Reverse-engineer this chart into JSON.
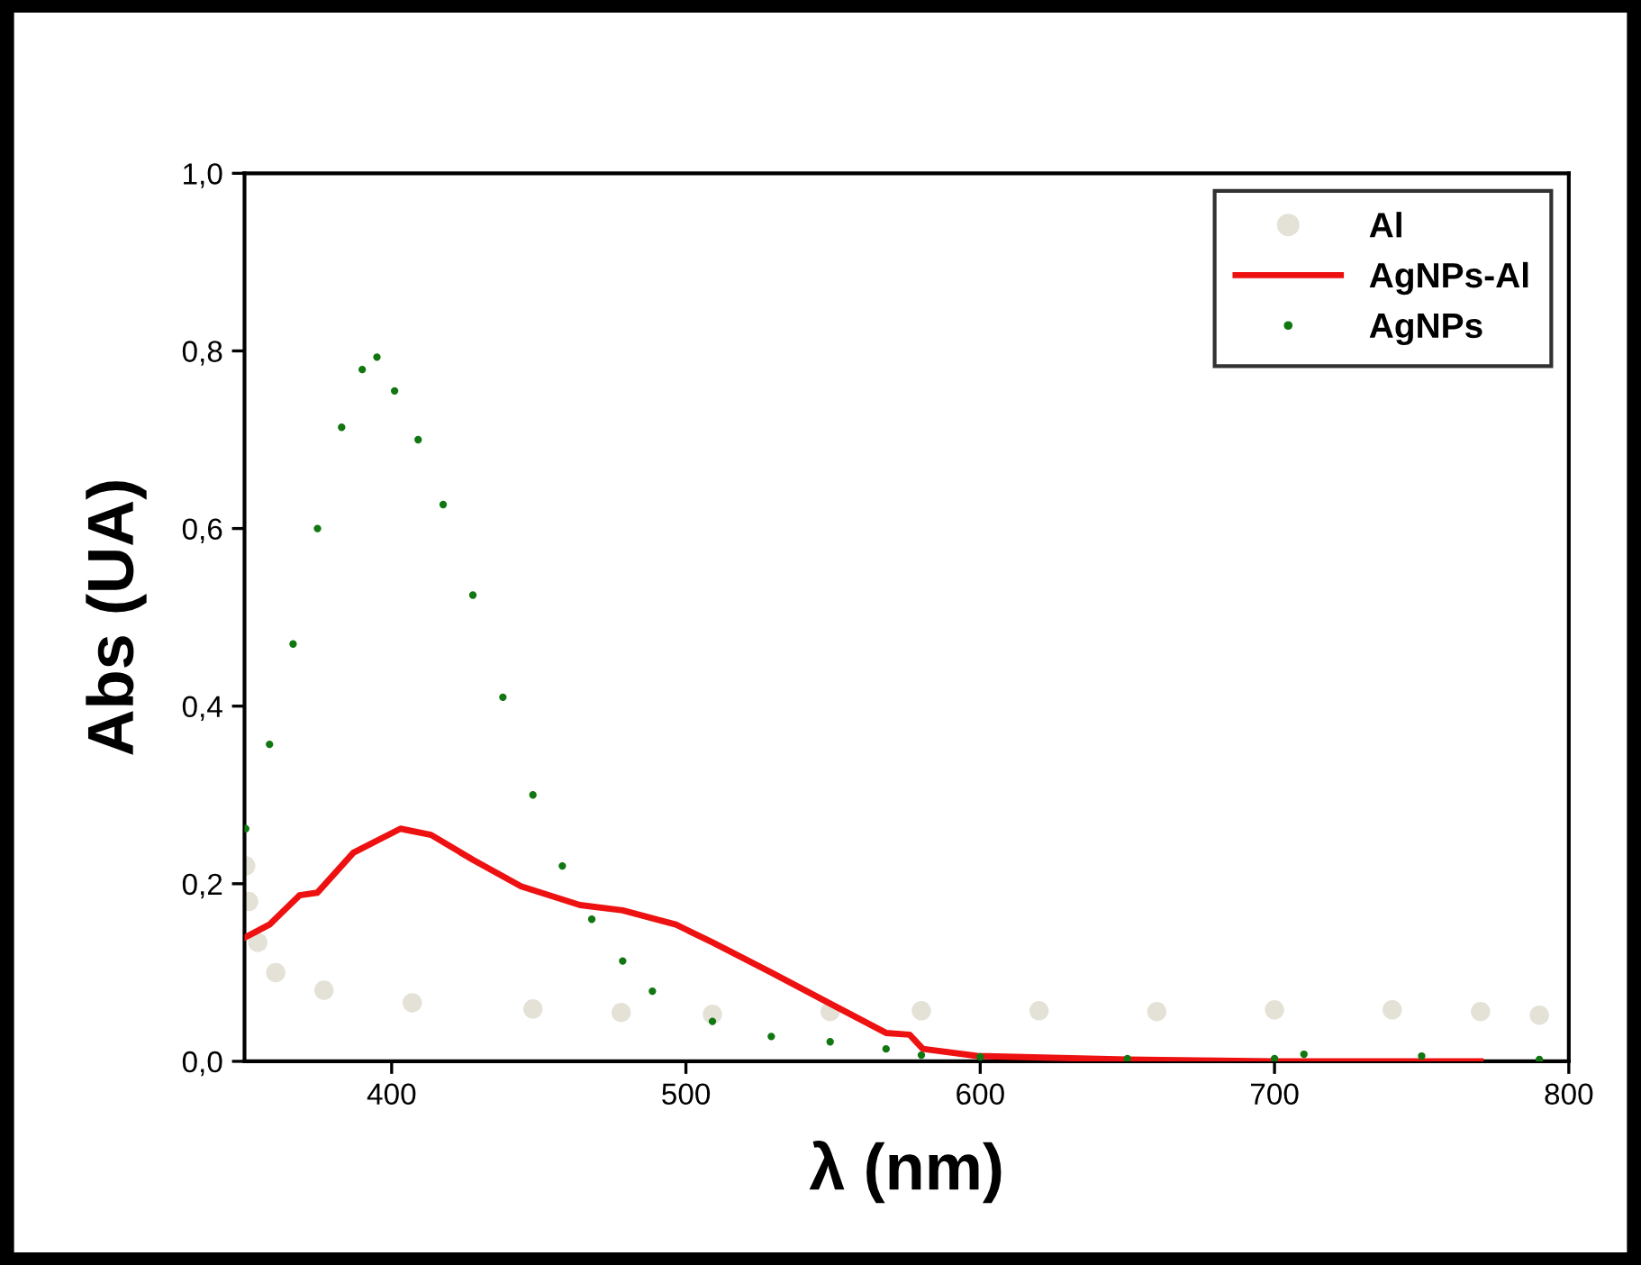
{
  "chart_data": {
    "type": "scatter",
    "xlabel": "λ (nm)",
    "ylabel": "Abs (UA)",
    "xlim": [
      350,
      800
    ],
    "xticks": [
      400,
      500,
      600,
      700,
      800
    ],
    "ylim": [
      0,
      1
    ],
    "yticks": [
      {
        "value": 0,
        "label": "0,0"
      },
      {
        "value": 0.2,
        "label": "0,2"
      },
      {
        "value": 0.4,
        "label": "0,4"
      },
      {
        "value": 0.6,
        "label": "0,6"
      },
      {
        "value": 0.8,
        "label": "0,8"
      },
      {
        "value": 1,
        "label": "1,0"
      }
    ],
    "grid": false,
    "legend": "top right",
    "series": [
      {
        "name": "Al",
        "marker": "circle",
        "color": "#e4e2d6",
        "x": [
          350.4,
          351.4,
          354.5,
          360.6,
          377,
          407,
          448,
          478,
          509,
          549,
          580,
          620,
          660,
          700,
          740,
          770,
          790
        ],
        "values": [
          0.22,
          0.18,
          0.134,
          0.1,
          0.08,
          0.066,
          0.059,
          0.055,
          0.053,
          0.056,
          0.057,
          0.057,
          0.056,
          0.058,
          0.058,
          0.056,
          0.052
        ]
      },
      {
        "name": "AgNPs-Al",
        "type": "line",
        "line_style": "solid",
        "color": "#ee1111",
        "x": [
          350.4,
          358.5,
          368.7,
          374.8,
          387,
          403,
          413.4,
          427.6,
          444,
          464,
          478.5,
          496.6,
          509,
          529,
          549,
          568,
          576,
          580.5,
          599,
          650,
          700,
          770
        ],
        "values": [
          0.14,
          0.154,
          0.187,
          0.19,
          0.235,
          0.262,
          0.255,
          0.227,
          0.197,
          0.176,
          0.17,
          0.154,
          0.134,
          0.1,
          0.065,
          0.032,
          0.03,
          0.014,
          0.006,
          0.002,
          0.0,
          0.0
        ]
      },
      {
        "name": "AgNPs",
        "marker": "circle",
        "color": "#117711",
        "x": [
          350.4,
          358.5,
          366.5,
          374.8,
          383,
          390,
          395,
          401,
          409,
          417.5,
          427.6,
          437.8,
          448,
          458,
          468,
          478.5,
          488.6,
          509,
          529,
          549,
          568,
          580,
          600,
          650,
          700,
          710,
          750,
          790
        ],
        "values": [
          0.262,
          0.357,
          0.47,
          0.6,
          0.714,
          0.779,
          0.793,
          0.755,
          0.7,
          0.627,
          0.525,
          0.41,
          0.3,
          0.22,
          0.16,
          0.113,
          0.079,
          0.045,
          0.028,
          0.022,
          0.014,
          0.007,
          0.005,
          0.003,
          0.003,
          0.008,
          0.006,
          0.002
        ]
      }
    ]
  }
}
